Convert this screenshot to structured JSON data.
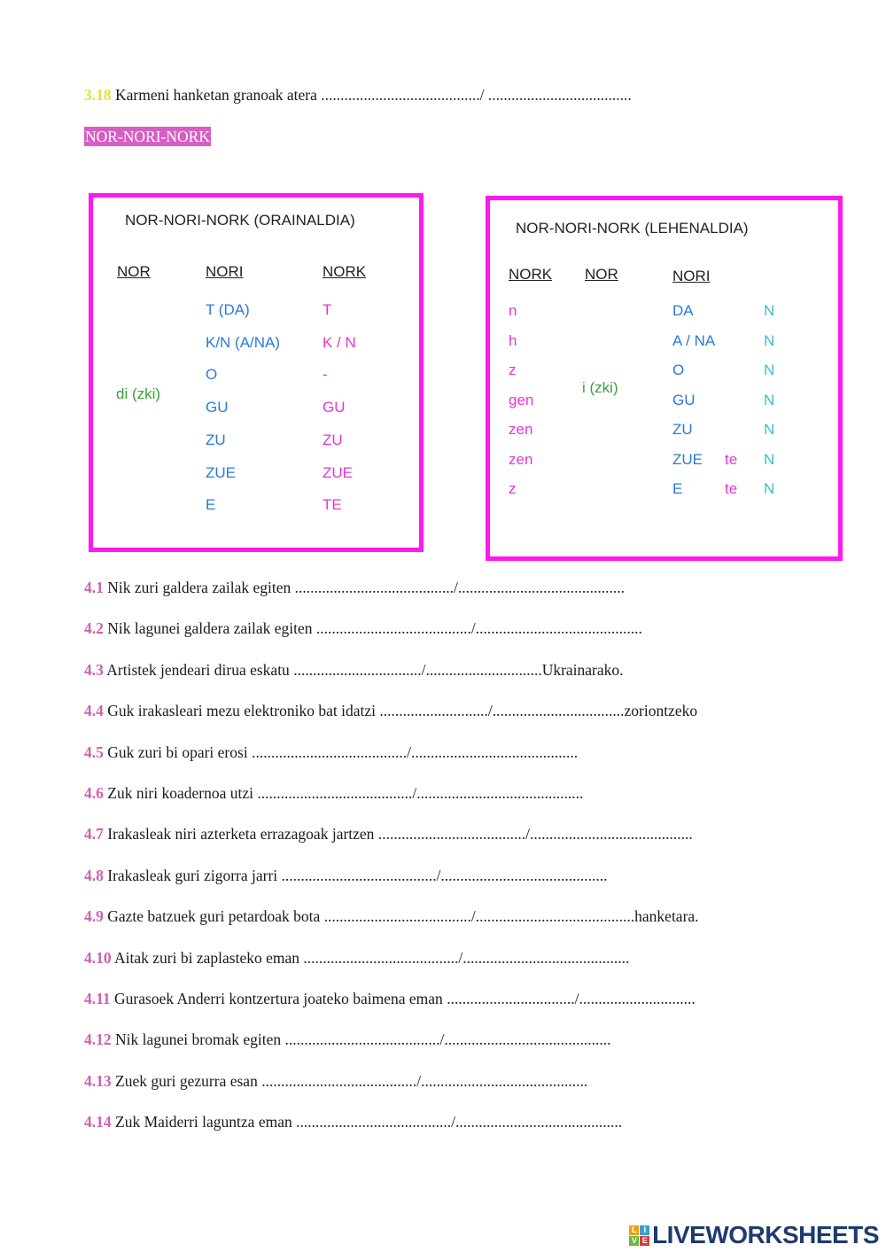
{
  "intro_line": {
    "num": "3.18",
    "text": "Karmeni hanketan granoak atera",
    "blank1": ".........................................",
    "sep": "/",
    "blank2": " .....................................",
    "suffix": ""
  },
  "section_tag": "NOR-NORI-NORK",
  "box_present": {
    "title": "NOR-NORI-NORK (ORAINALDIA)",
    "headers": [
      "NOR",
      "NORI",
      "NORK"
    ],
    "nor": "di (zki)",
    "nori": [
      "T (DA)",
      "K/N (A/NA)",
      "O",
      "GU",
      "ZU",
      "ZUE",
      "E"
    ],
    "nork": [
      "T",
      "K / N",
      "-",
      "GU",
      "ZU",
      "ZUE",
      "TE"
    ]
  },
  "box_past": {
    "title": "NOR-NORI-NORK (LEHENALDIA)",
    "headers": [
      "NORK",
      "NOR",
      "NORI"
    ],
    "nork": [
      "n",
      "h",
      "z",
      "gen",
      "zen",
      "zen",
      "z"
    ],
    "nor": "i (zki)",
    "nori": [
      "DA",
      "A / NA",
      "O",
      "GU",
      "ZU",
      "ZUE",
      "E"
    ],
    "te": [
      "",
      "",
      "",
      "",
      "",
      "te",
      "te"
    ],
    "n": [
      "N",
      "N",
      "N",
      "N",
      "N",
      "N",
      "N"
    ]
  },
  "exercises": [
    {
      "num": "4.1",
      "text": " Nik zuri galdera zailak egiten ",
      "blank1": ".........................................",
      "sep": "/",
      "blank2": "...........................................",
      "suffix": ""
    },
    {
      "num": "4.2",
      "text": " Nik lagunei galdera zailak egiten ",
      "blank1": "........................................",
      "sep": "/",
      "blank2": "...........................................",
      "suffix": ""
    },
    {
      "num": "4.3",
      "text": " Artistek jendeari dirua eskatu ",
      "blank1": ".................................",
      "sep": "/",
      "blank2": "..............................",
      "suffix": "Ukrainarako."
    },
    {
      "num": "4.4",
      "text": " Guk irakasleari mezu elektroniko bat idatzi ",
      "blank1": "............................",
      "sep": "/",
      "blank2": "..................................",
      "suffix": "zoriontzeko"
    },
    {
      "num": "4.5",
      "text": " Guk zuri bi opari erosi ",
      "blank1": "........................................",
      "sep": "/",
      "blank2": "...........................................",
      "suffix": ""
    },
    {
      "num": "4.6",
      "text": "  Zuk niri koadernoa utzi ",
      "blank1": "........................................",
      "sep": "/",
      "blank2": "...........................................",
      "suffix": ""
    },
    {
      "num": "4.7",
      "text": "  Irakasleak niri azterketa errazagoak jartzen ",
      "blank1": "......................................",
      "sep": "/",
      "blank2": "..........................................",
      "suffix": ""
    },
    {
      "num": "4.8",
      "text": "  Irakasleak guri zigorra jarri ",
      "blank1": "........................................",
      "sep": "/",
      "blank2": "...........................................",
      "suffix": ""
    },
    {
      "num": "4.9",
      "text": "  Gazte batzuek guri petardoak bota ",
      "blank1": "......................................",
      "sep": "/",
      "blank2": ".........................................",
      "suffix": "hanketara."
    },
    {
      "num": "4.10",
      "text": " Aitak zuri bi zaplasteko eman ",
      "blank1": "........................................",
      "sep": "/",
      "blank2": "...........................................",
      "suffix": ""
    },
    {
      "num": "4.11",
      "text": " Gurasoek Anderri kontzertura joateko baimena eman ",
      "blank1": ".................................",
      "sep": "/",
      "blank2": "..............................",
      "suffix": ""
    },
    {
      "num": "4.12",
      "text": "  Nik lagunei bromak egiten ",
      "blank1": "........................................",
      "sep": "/",
      "blank2": "...........................................",
      "suffix": ""
    },
    {
      "num": "4.13",
      "text": " Zuek guri gezurra esan ",
      "blank1": "........................................",
      "sep": "/",
      "blank2": "...........................................",
      "suffix": ""
    },
    {
      "num": "4.14",
      "text": " Zuk Maiderri laguntza eman ",
      "blank1": "........................................",
      "sep": "/",
      "blank2": "...........................................",
      "suffix": ""
    }
  ],
  "logo": {
    "text": "LIVEWORKSHEETS",
    "letters": [
      "L",
      "I",
      "V",
      "E"
    ]
  },
  "colors": {
    "box_border": "#ff19ee",
    "number_pink": "#d060b0",
    "number_yellow": "#e2e23a",
    "tag_bg": "#d65fc4"
  }
}
